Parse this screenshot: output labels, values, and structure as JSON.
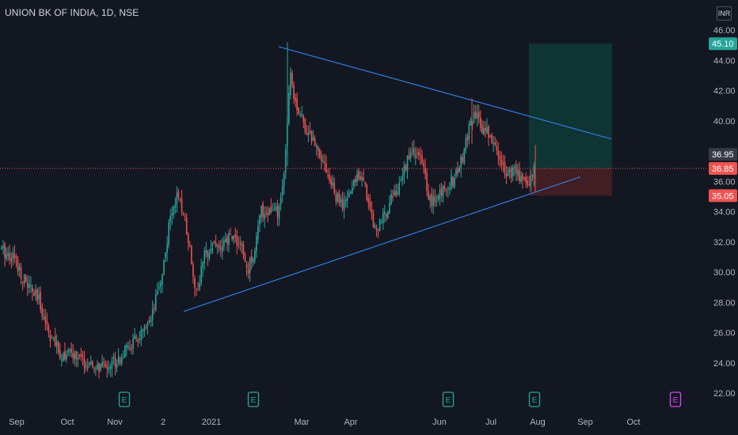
{
  "header": {
    "symbol_title": "UNION BK OF INDIA, 1D, NSE",
    "currency": "INR"
  },
  "colors": {
    "background": "#131722",
    "up": "#26a69a",
    "down": "#ef5350",
    "trendline": "#2962ff",
    "axis_text": "#b2b5be",
    "target_zone": "#0e3a36",
    "stop_zone": "#4a1e24",
    "event": "#26a69a",
    "event_future": "#e040fb"
  },
  "chart_data": {
    "type": "candlestick",
    "title": "UNION BK OF INDIA, 1D, NSE",
    "ylim": [
      21.0,
      46.8
    ],
    "y_ticks": [
      22,
      24,
      26,
      28,
      30,
      32,
      34,
      36,
      38,
      40,
      42,
      44,
      46
    ],
    "y_tick_labels": [
      "22.00",
      "24.00",
      "26.00",
      "28.00",
      "30.00",
      "32.00",
      "34.00",
      "36.00",
      "38.00",
      "40.00",
      "42.00",
      "44.00",
      "46.00"
    ],
    "x_ticks": [
      "Sep",
      "Oct",
      "Nov",
      "2",
      "2021",
      "Mar",
      "Apr",
      "Jun",
      "Jul",
      "Aug",
      "Sep",
      "Oct"
    ],
    "price_labels": [
      {
        "text": "45.10",
        "value": 45.1,
        "color": "#26a69a"
      },
      {
        "text": "36.95",
        "value": 36.95,
        "color": "#363a45"
      },
      {
        "text": "36.85",
        "value": 36.85,
        "color": "#ef5350"
      },
      {
        "text": "35.05",
        "value": 35.05,
        "color": "#ef5350"
      }
    ],
    "current_price": 36.85,
    "position": {
      "entry": 36.85,
      "target": 45.1,
      "stop": 35.05
    },
    "trendlines": [
      {
        "name": "upper",
        "from": [
          352,
          44.9
        ],
        "to": [
          772,
          38.8
        ]
      },
      {
        "name": "lower",
        "from": [
          232,
          27.4
        ],
        "to": [
          733,
          36.3
        ]
      }
    ],
    "series_anchor_points": [
      [
        0,
        31.5
      ],
      [
        18,
        31.0
      ],
      [
        30,
        29.5
      ],
      [
        50,
        28.0
      ],
      [
        62,
        26.0
      ],
      [
        75,
        24.6
      ],
      [
        95,
        24.5
      ],
      [
        115,
        23.6
      ],
      [
        130,
        23.7
      ],
      [
        150,
        24.3
      ],
      [
        170,
        25.4
      ],
      [
        190,
        26.5
      ],
      [
        205,
        30.0
      ],
      [
        215,
        33.5
      ],
      [
        222,
        35.0
      ],
      [
        232,
        34.0
      ],
      [
        240,
        31.5
      ],
      [
        248,
        28.5
      ],
      [
        258,
        31.0
      ],
      [
        268,
        32.0
      ],
      [
        280,
        31.5
      ],
      [
        292,
        32.5
      ],
      [
        304,
        31.8
      ],
      [
        312,
        30.0
      ],
      [
        320,
        31.2
      ],
      [
        330,
        34.0
      ],
      [
        345,
        34.0
      ],
      [
        352,
        33.8
      ],
      [
        360,
        37.0
      ],
      [
        366,
        43.5
      ],
      [
        372,
        41.5
      ],
      [
        382,
        40.0
      ],
      [
        392,
        39.0
      ],
      [
        404,
        38.0
      ],
      [
        414,
        36.5
      ],
      [
        424,
        35.0
      ],
      [
        434,
        34.3
      ],
      [
        444,
        35.5
      ],
      [
        454,
        36.7
      ],
      [
        464,
        35.0
      ],
      [
        474,
        32.8
      ],
      [
        484,
        33.5
      ],
      [
        494,
        35.0
      ],
      [
        504,
        35.5
      ],
      [
        514,
        37.5
      ],
      [
        524,
        38.0
      ],
      [
        534,
        37.0
      ],
      [
        544,
        34.5
      ],
      [
        554,
        35.0
      ],
      [
        564,
        35.8
      ],
      [
        574,
        36.2
      ],
      [
        584,
        37.5
      ],
      [
        592,
        39.5
      ],
      [
        600,
        40.3
      ],
      [
        610,
        39.5
      ],
      [
        620,
        39.0
      ],
      [
        630,
        37.5
      ],
      [
        640,
        36.7
      ],
      [
        650,
        36.5
      ],
      [
        660,
        36.3
      ],
      [
        668,
        35.8
      ],
      [
        673,
        36.6
      ],
      [
        676,
        38.1
      ]
    ],
    "earnings_event_markers": [
      {
        "label": "E",
        "x": 157,
        "future": false
      },
      {
        "label": "E",
        "x": 320,
        "future": false
      },
      {
        "label": "E",
        "x": 566,
        "future": false
      },
      {
        "label": "E",
        "x": 675,
        "future": false
      },
      {
        "label": "E",
        "x": 853,
        "future": true
      }
    ]
  }
}
